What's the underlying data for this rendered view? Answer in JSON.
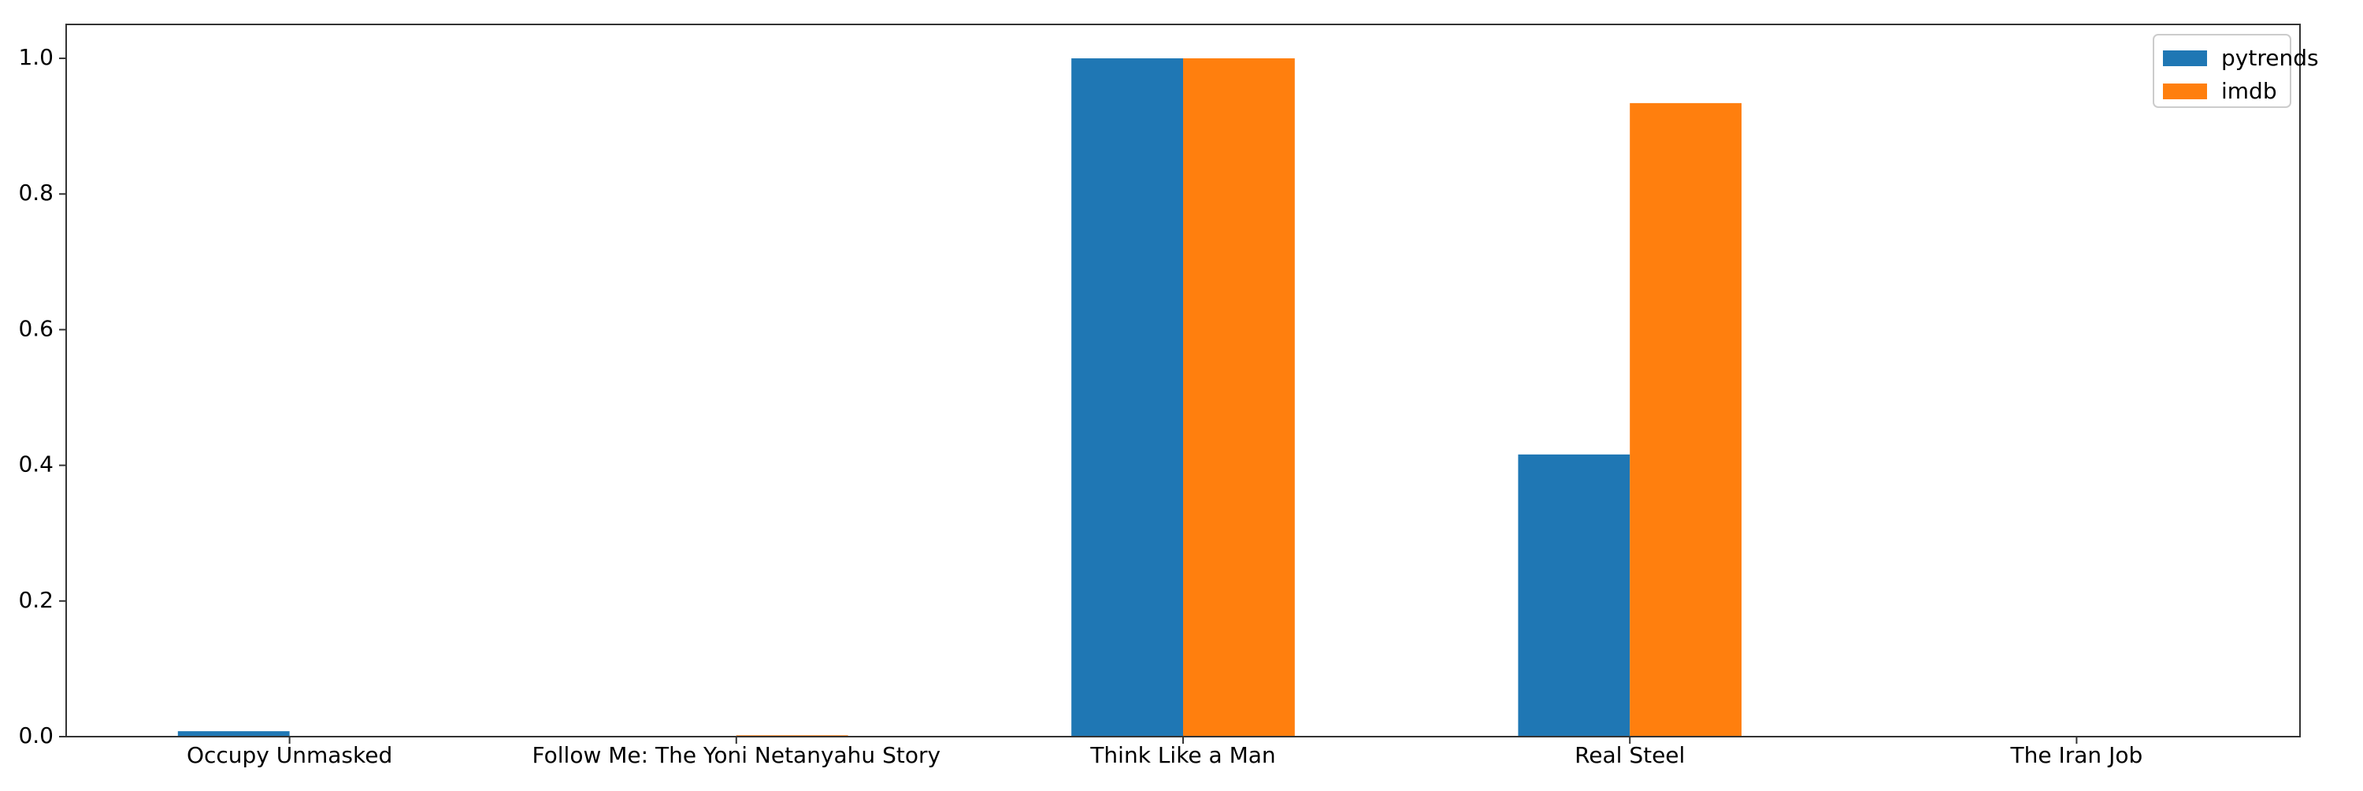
{
  "chart_data": {
    "type": "bar",
    "title": "",
    "xlabel": "",
    "ylabel": "",
    "categories": [
      "Occupy Unmasked",
      "Follow Me: The Yoni Netanyahu Story",
      "Think Like a Man",
      "Real Steel",
      "The Iran Job"
    ],
    "series": [
      {
        "name": "pytrends",
        "color": "#1f77b4",
        "values": [
          0.008,
          0.0,
          1.0,
          0.416,
          0.0
        ]
      },
      {
        "name": "imdb",
        "color": "#ff7f0e",
        "values": [
          0.0,
          0.002,
          1.0,
          0.934,
          0.0
        ]
      }
    ],
    "ylim": [
      0,
      1.05
    ],
    "yticks": [
      "0.0",
      "0.2",
      "0.4",
      "0.6",
      "0.8",
      "1.0"
    ],
    "grid": false,
    "legend_position": "top-right"
  }
}
